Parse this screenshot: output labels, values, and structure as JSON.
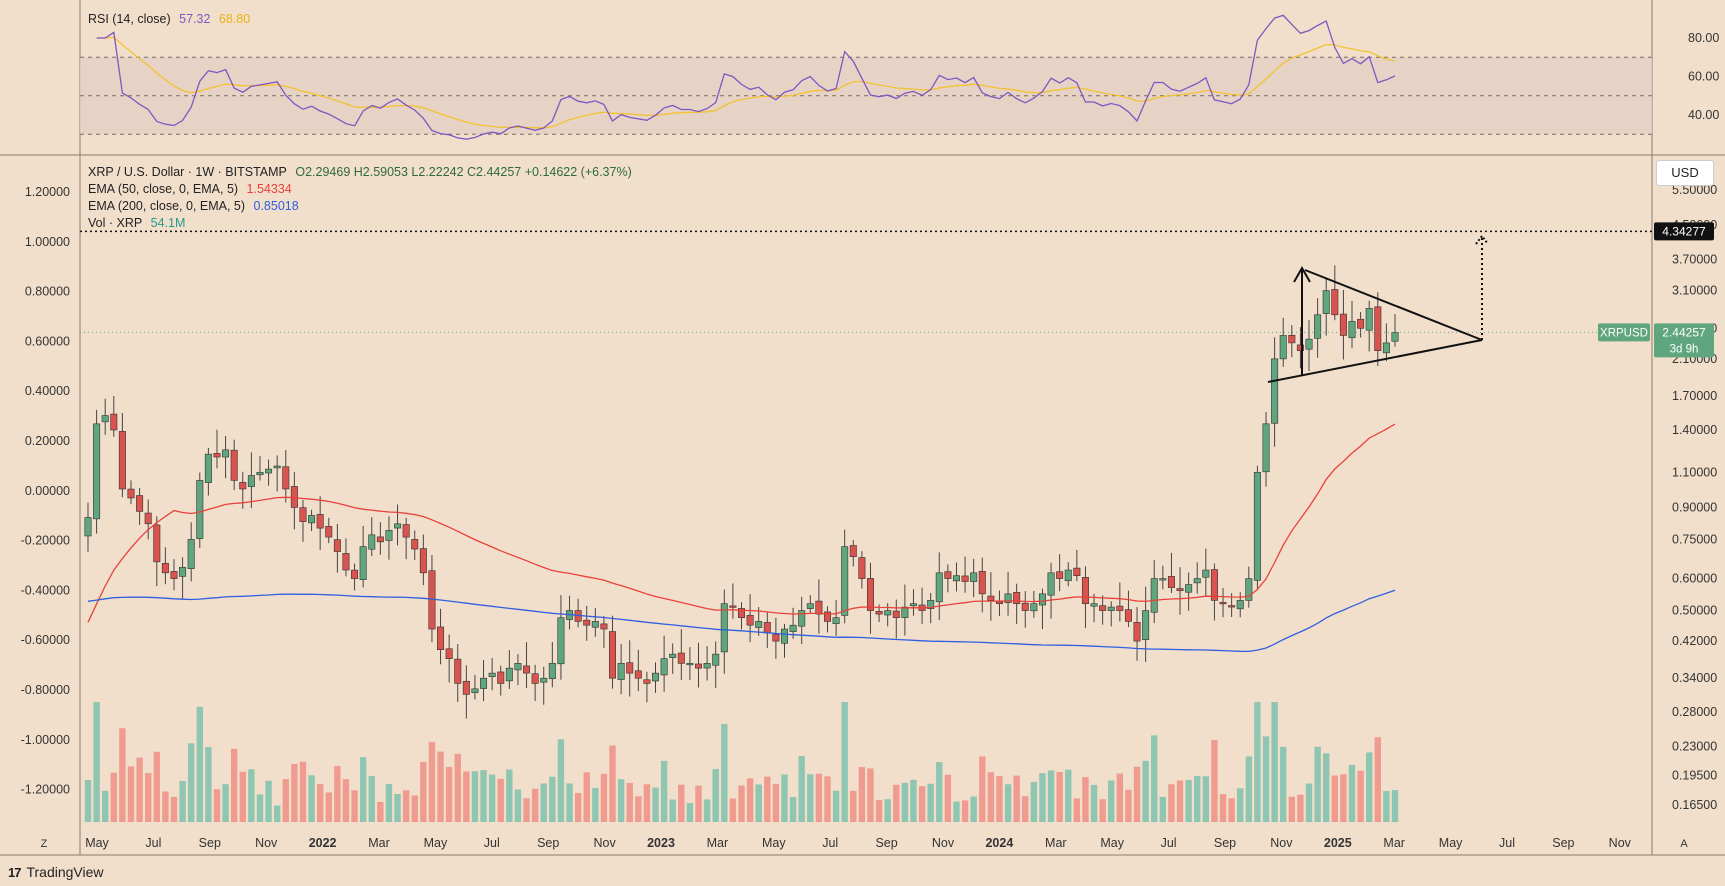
{
  "rsi": {
    "title": "RSI (14, close)",
    "value": "57.32",
    "ma_value": "68.80",
    "ticks": [
      "80.00",
      "60.00",
      "40.00"
    ]
  },
  "main": {
    "symbol": "XRP / U.S. Dollar · 1W · BITSTAMP",
    "ohlc": "O2.29469  H2.59053  L2.22242  C2.44257  +0.14622 (+6.37%)",
    "ema50_label": "EMA (50, close, 0, EMA, 5)",
    "ema50_value": "1.54334",
    "ema200_label": "EMA (200, close, 0, EMA, 5)",
    "ema200_value": "0.85018",
    "vol_label": "Vol · XRP",
    "vol_value": "54.1M",
    "currency": "USD",
    "target_label": "4.34277",
    "symbol_tag": "XRPUSD",
    "price_tag": "2.44257",
    "countdown": "3d 9h",
    "left_ticks": [
      "1.20000",
      "1.00000",
      "0.80000",
      "0.60000",
      "0.40000",
      "0.20000",
      "0.00000",
      "-0.20000",
      "-0.40000",
      "-0.60000",
      "-0.80000",
      "-1.00000",
      "-1.20000"
    ],
    "right_ticks": [
      "5.50000",
      "4.50000",
      "3.70000",
      "3.10000",
      "2.50000",
      "2.10000",
      "1.70000",
      "1.40000",
      "1.10000",
      "0.90000",
      "0.75000",
      "0.60000",
      "0.50000",
      "0.42000",
      "0.34000",
      "0.28000",
      "0.23000",
      "0.19500",
      "0.16500"
    ],
    "x_ticks": [
      "May",
      "Jul",
      "Sep",
      "Nov",
      "2022",
      "Mar",
      "May",
      "Jul",
      "Sep",
      "Nov",
      "2023",
      "Mar",
      "May",
      "Jul",
      "Sep",
      "Nov",
      "2024",
      "Mar",
      "May",
      "Jul",
      "Sep",
      "Nov",
      "2025",
      "Mar",
      "May",
      "Jul",
      "Sep",
      "Nov"
    ],
    "bold_ticks": [
      "2022",
      "2023",
      "2024",
      "2025"
    ]
  },
  "colors": {
    "background": "#f2dfcb",
    "up": "#5fa57e",
    "down": "#d9534f",
    "ema50": "#e8413c",
    "ema200": "#2f5fe0",
    "rsi_line": "#7e57c2",
    "rsi_ma": "#f2c230",
    "rsi_band": "#e4cfc4"
  },
  "footer": {
    "brand": "TradingView",
    "logo": "17"
  },
  "chart_data": {
    "type": "candlestick",
    "title": "XRP / U.S. Dollar · 1W · BITSTAMP",
    "y_scale": "log",
    "weeks_start": "2021-04-26",
    "last_close": 2.44257,
    "target_level": 4.34277,
    "closes_anchor": [
      [
        0,
        0.85
      ],
      [
        1,
        1.45
      ],
      [
        2,
        1.52
      ],
      [
        3,
        1.4
      ],
      [
        4,
        1.0
      ],
      [
        5,
        0.95
      ],
      [
        6,
        0.88
      ],
      [
        7,
        0.82
      ],
      [
        8,
        0.66
      ],
      [
        9,
        0.62
      ],
      [
        10,
        0.6
      ],
      [
        11,
        0.64
      ],
      [
        12,
        0.75
      ],
      [
        13,
        1.05
      ],
      [
        14,
        1.22
      ],
      [
        15,
        1.2
      ],
      [
        16,
        1.25
      ],
      [
        17,
        1.05
      ],
      [
        18,
        1.0
      ],
      [
        19,
        1.08
      ],
      [
        20,
        1.1
      ],
      [
        21,
        1.12
      ],
      [
        22,
        1.14
      ],
      [
        23,
        1.0
      ],
      [
        24,
        0.9
      ],
      [
        25,
        0.83
      ],
      [
        26,
        0.86
      ],
      [
        27,
        0.8
      ],
      [
        28,
        0.76
      ],
      [
        29,
        0.7
      ],
      [
        30,
        0.63
      ],
      [
        31,
        0.6
      ],
      [
        32,
        0.72
      ],
      [
        33,
        0.77
      ],
      [
        34,
        0.74
      ],
      [
        35,
        0.79
      ],
      [
        36,
        0.82
      ],
      [
        37,
        0.76
      ],
      [
        38,
        0.71
      ],
      [
        39,
        0.62
      ],
      [
        40,
        0.45
      ],
      [
        41,
        0.4
      ],
      [
        42,
        0.38
      ],
      [
        43,
        0.33
      ],
      [
        44,
        0.31
      ],
      [
        45,
        0.32
      ],
      [
        46,
        0.34
      ],
      [
        47,
        0.35
      ],
      [
        48,
        0.33
      ],
      [
        49,
        0.36
      ],
      [
        50,
        0.37
      ],
      [
        51,
        0.35
      ],
      [
        52,
        0.33
      ],
      [
        53,
        0.34
      ],
      [
        54,
        0.37
      ],
      [
        55,
        0.48
      ],
      [
        56,
        0.5
      ],
      [
        57,
        0.47
      ],
      [
        58,
        0.46
      ],
      [
        59,
        0.47
      ],
      [
        60,
        0.45
      ],
      [
        61,
        0.34
      ],
      [
        62,
        0.37
      ],
      [
        63,
        0.35
      ],
      [
        64,
        0.34
      ],
      [
        65,
        0.33
      ],
      [
        66,
        0.35
      ],
      [
        67,
        0.38
      ],
      [
        68,
        0.39
      ],
      [
        69,
        0.37
      ],
      [
        70,
        0.37
      ],
      [
        71,
        0.36
      ],
      [
        72,
        0.37
      ],
      [
        73,
        0.39
      ],
      [
        74,
        0.52
      ],
      [
        75,
        0.51
      ],
      [
        76,
        0.48
      ],
      [
        77,
        0.46
      ],
      [
        78,
        0.47
      ],
      [
        79,
        0.44
      ],
      [
        80,
        0.42
      ],
      [
        81,
        0.45
      ],
      [
        82,
        0.46
      ],
      [
        83,
        0.5
      ],
      [
        84,
        0.52
      ],
      [
        85,
        0.49
      ],
      [
        86,
        0.47
      ],
      [
        87,
        0.48
      ],
      [
        88,
        0.72
      ],
      [
        89,
        0.68
      ],
      [
        90,
        0.6
      ],
      [
        91,
        0.5
      ],
      [
        92,
        0.49
      ],
      [
        93,
        0.5
      ],
      [
        94,
        0.48
      ],
      [
        95,
        0.51
      ],
      [
        96,
        0.52
      ],
      [
        97,
        0.5
      ],
      [
        98,
        0.53
      ],
      [
        99,
        0.62
      ],
      [
        100,
        0.6
      ],
      [
        101,
        0.61
      ],
      [
        102,
        0.59
      ],
      [
        103,
        0.62
      ],
      [
        104,
        0.55
      ],
      [
        105,
        0.53
      ],
      [
        106,
        0.52
      ],
      [
        107,
        0.55
      ],
      [
        108,
        0.52
      ],
      [
        109,
        0.5
      ],
      [
        110,
        0.52
      ],
      [
        111,
        0.55
      ],
      [
        112,
        0.62
      ],
      [
        113,
        0.6
      ],
      [
        114,
        0.63
      ],
      [
        115,
        0.61
      ],
      [
        116,
        0.52
      ],
      [
        117,
        0.52
      ],
      [
        118,
        0.5
      ],
      [
        119,
        0.51
      ],
      [
        120,
        0.5
      ],
      [
        121,
        0.47
      ],
      [
        122,
        0.42
      ],
      [
        123,
        0.5
      ],
      [
        124,
        0.6
      ],
      [
        125,
        0.6
      ],
      [
        126,
        0.57
      ],
      [
        127,
        0.56
      ],
      [
        128,
        0.58
      ],
      [
        129,
        0.6
      ],
      [
        130,
        0.63
      ],
      [
        131,
        0.53
      ],
      [
        132,
        0.52
      ],
      [
        133,
        0.51
      ],
      [
        134,
        0.53
      ],
      [
        135,
        0.6
      ],
      [
        136,
        1.1
      ],
      [
        137,
        1.45
      ],
      [
        138,
        2.1
      ],
      [
        139,
        2.4
      ],
      [
        140,
        2.3
      ],
      [
        141,
        2.2
      ],
      [
        142,
        2.35
      ],
      [
        143,
        2.7
      ],
      [
        144,
        3.1
      ],
      [
        145,
        2.7
      ],
      [
        146,
        2.4
      ],
      [
        147,
        2.6
      ],
      [
        148,
        2.5
      ],
      [
        149,
        2.8
      ],
      [
        150,
        2.2
      ],
      [
        151,
        2.3
      ],
      [
        152,
        2.44257
      ]
    ]
  }
}
